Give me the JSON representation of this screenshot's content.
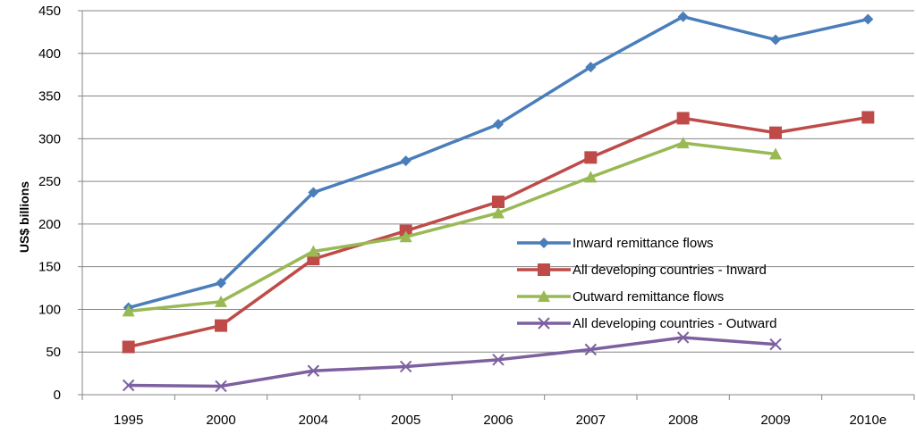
{
  "chart_data": {
    "type": "line",
    "title": "",
    "xlabel": "",
    "ylabel": "US$ billions",
    "categories": [
      "1995",
      "2000",
      "2004",
      "2005",
      "2006",
      "2007",
      "2008",
      "2009",
      "2010e"
    ],
    "ylim": [
      0,
      450
    ],
    "yticks": [
      0,
      50,
      100,
      150,
      200,
      250,
      300,
      350,
      400,
      450
    ],
    "grid": "horizontal",
    "legend_position": "center-right",
    "series": [
      {
        "name": "Inward remittance flows",
        "color": "#4A7EBB",
        "marker": "diamond",
        "values": [
          102,
          131,
          237,
          274,
          317,
          384,
          443,
          416,
          440
        ]
      },
      {
        "name": "All developing countries - Inward",
        "color": "#BE4B48",
        "marker": "square",
        "values": [
          56,
          81,
          159,
          192,
          226,
          278,
          324,
          307,
          325
        ]
      },
      {
        "name": "Outward remittance flows",
        "color": "#98B954",
        "marker": "triangle",
        "values": [
          98,
          109,
          168,
          185,
          213,
          255,
          295,
          282,
          null
        ]
      },
      {
        "name": "All developing countries - Outward",
        "color": "#7D60A0",
        "marker": "x",
        "values": [
          11,
          10,
          28,
          33,
          41,
          53,
          67,
          59,
          null
        ]
      }
    ]
  }
}
